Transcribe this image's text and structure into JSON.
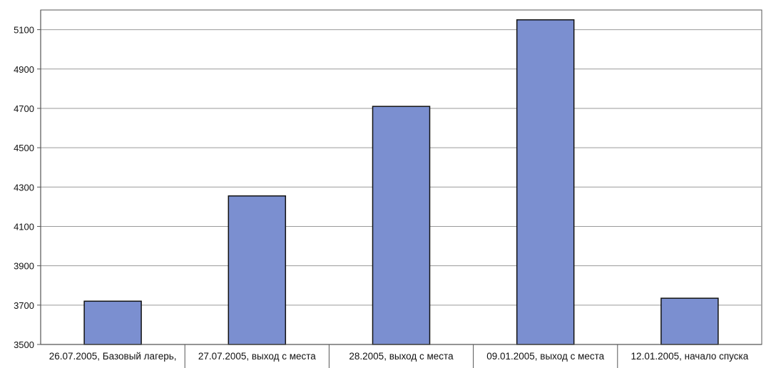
{
  "chart_data": {
    "type": "bar",
    "categories": [
      "26.07.2005, Базовый лагерь,",
      "27.07.2005, выход с места",
      "28.2005, выход с места",
      "09.01.2005, выход с места",
      "12.01.2005, начало спуска"
    ],
    "values": [
      3720,
      4255,
      4710,
      5150,
      3735
    ],
    "ylim": [
      3500,
      5200
    ],
    "yticks": [
      3500,
      3700,
      3900,
      4100,
      4300,
      4500,
      4700,
      4900,
      5100
    ],
    "grid": true,
    "legend": "none",
    "colors": {
      "bar_fill": "#7b8fd0",
      "bar_stroke": "#111111",
      "grid": "#9a9a9a",
      "axis": "#555555"
    }
  }
}
